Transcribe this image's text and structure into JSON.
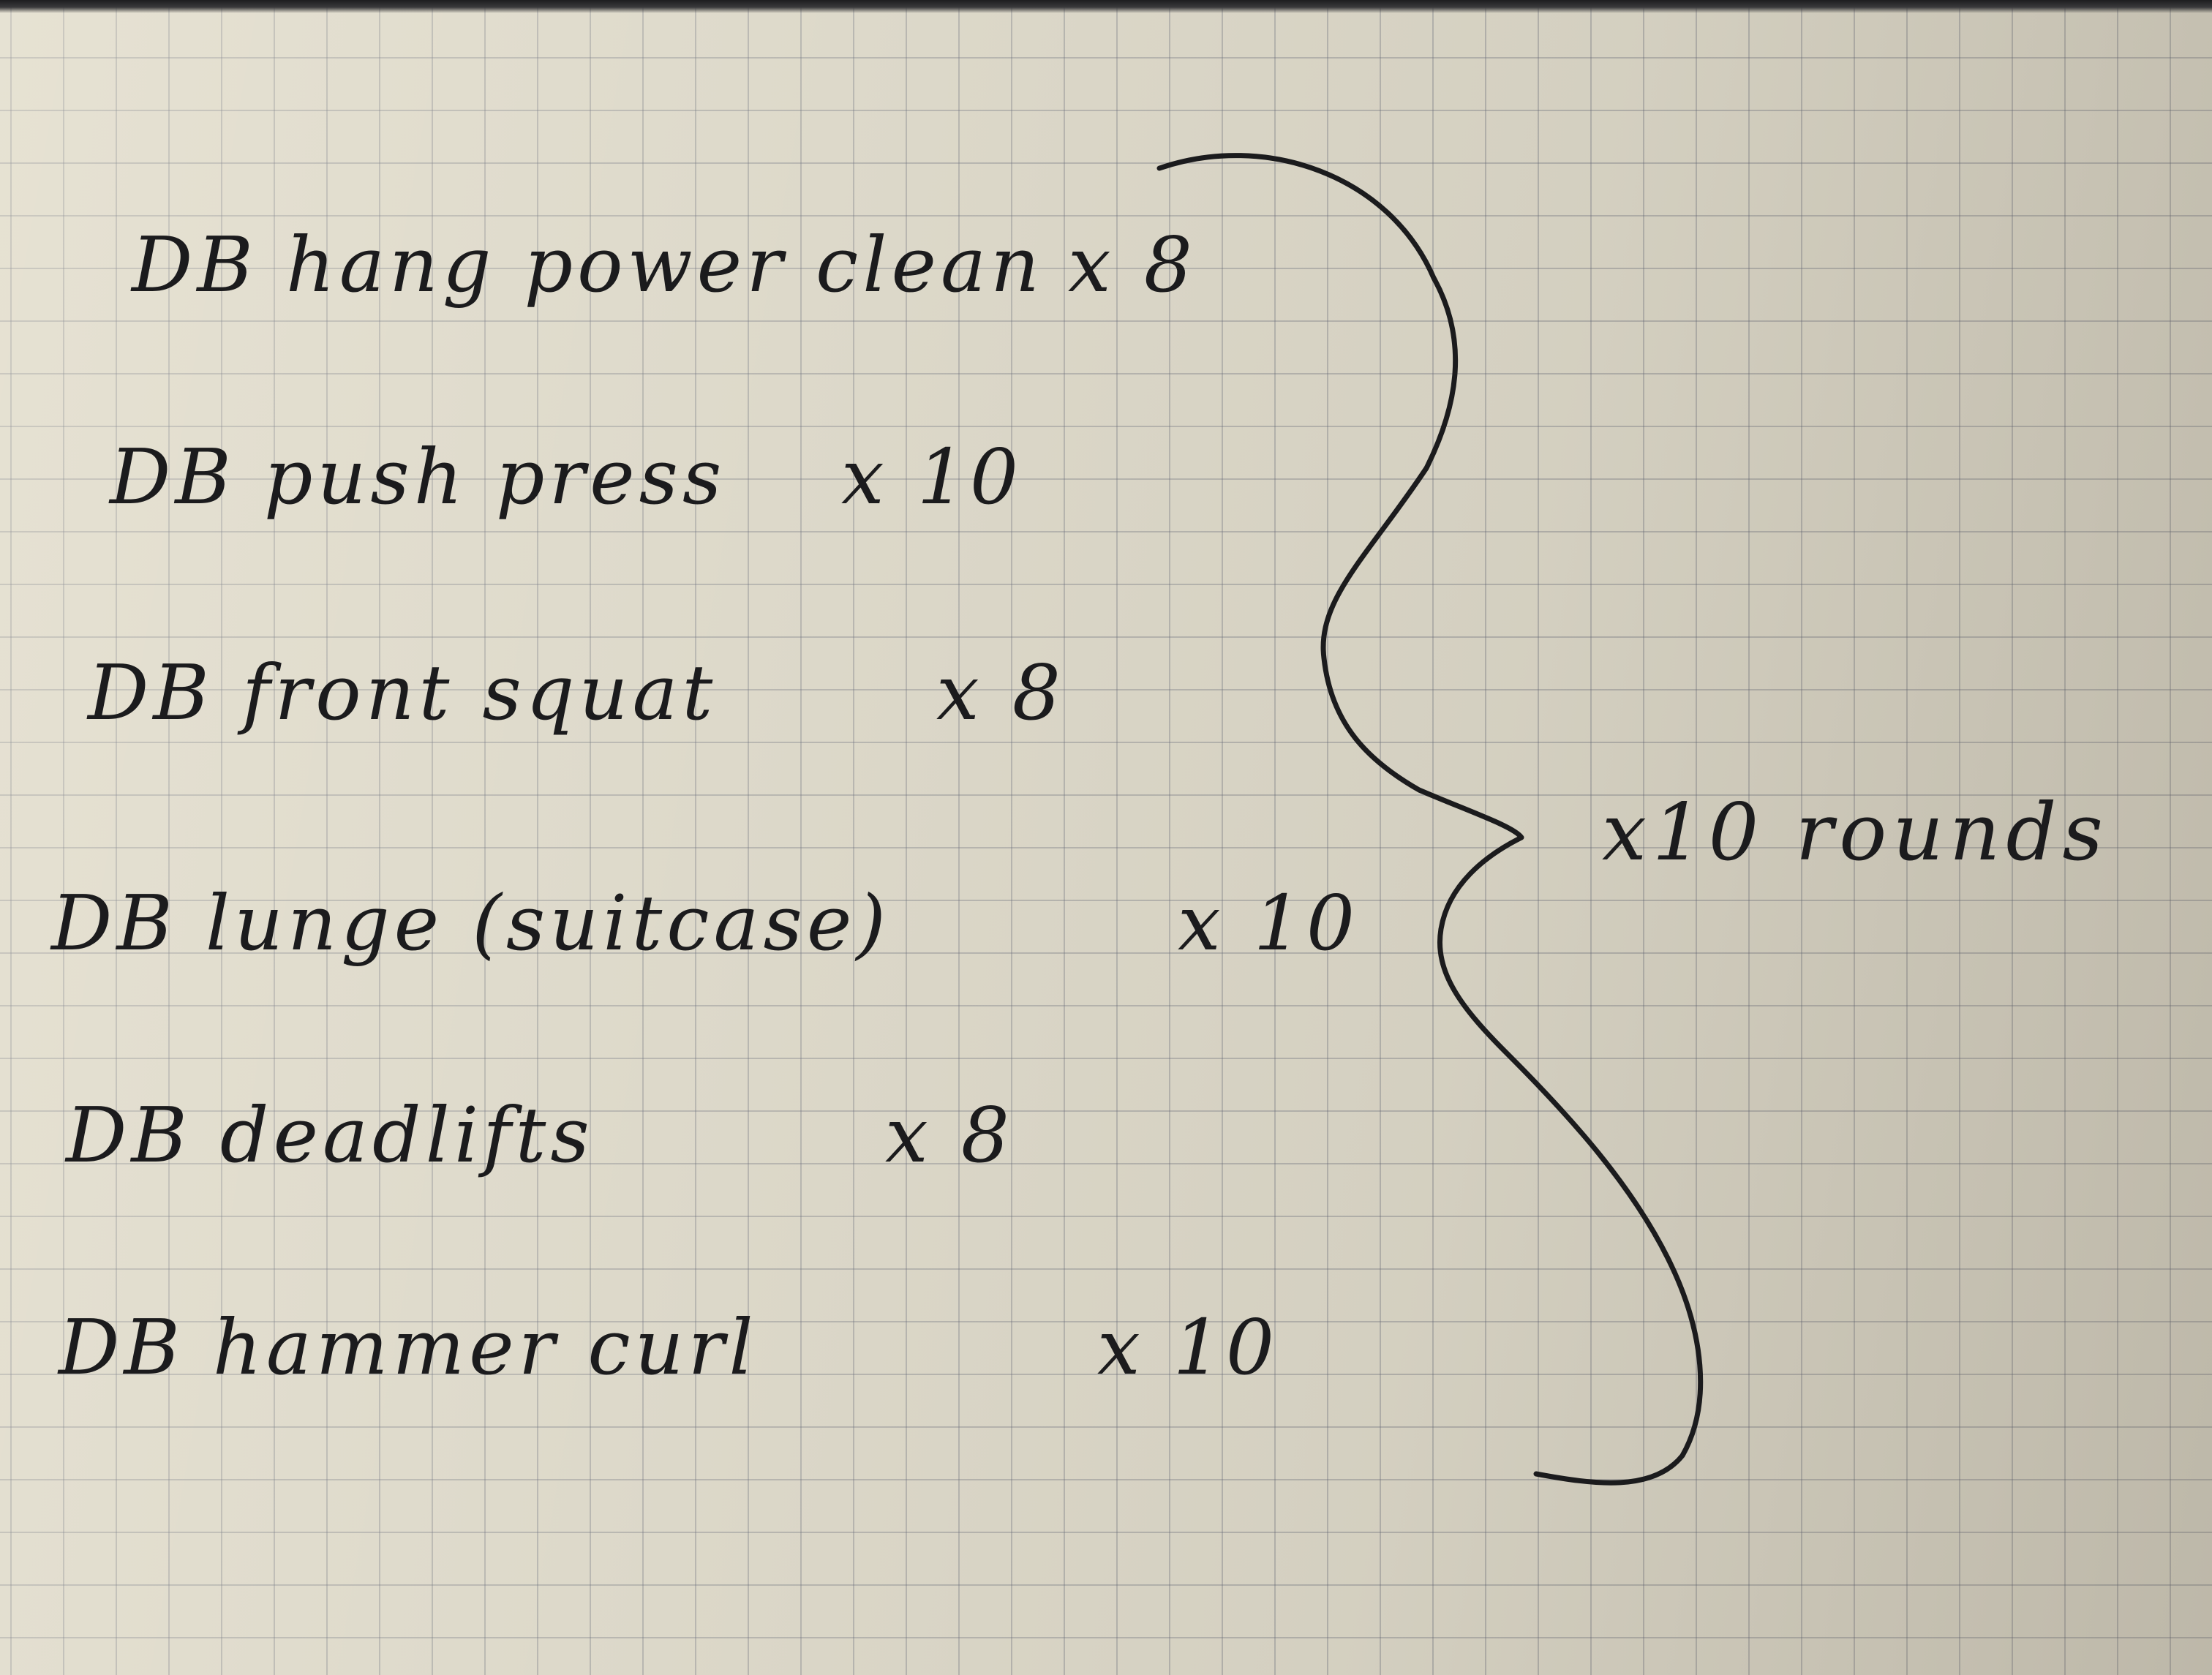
{
  "notes": {
    "exercises": [
      {
        "name": "DB hang power clean",
        "count": "x 8"
      },
      {
        "name": "DB push press",
        "count": "x 10"
      },
      {
        "name": "DB front squat",
        "count": "x 8"
      },
      {
        "name": "DB lunge (suitcase)",
        "count": "x 10"
      },
      {
        "name": "DB deadlifts",
        "count": "x 8"
      },
      {
        "name": "DB hammer curl",
        "count": "x 10"
      }
    ],
    "rounds": "x10 rounds"
  },
  "colors": {
    "paper": "#d9d5c6",
    "grid": "#5f6473",
    "ink": "#1b1b1d"
  }
}
